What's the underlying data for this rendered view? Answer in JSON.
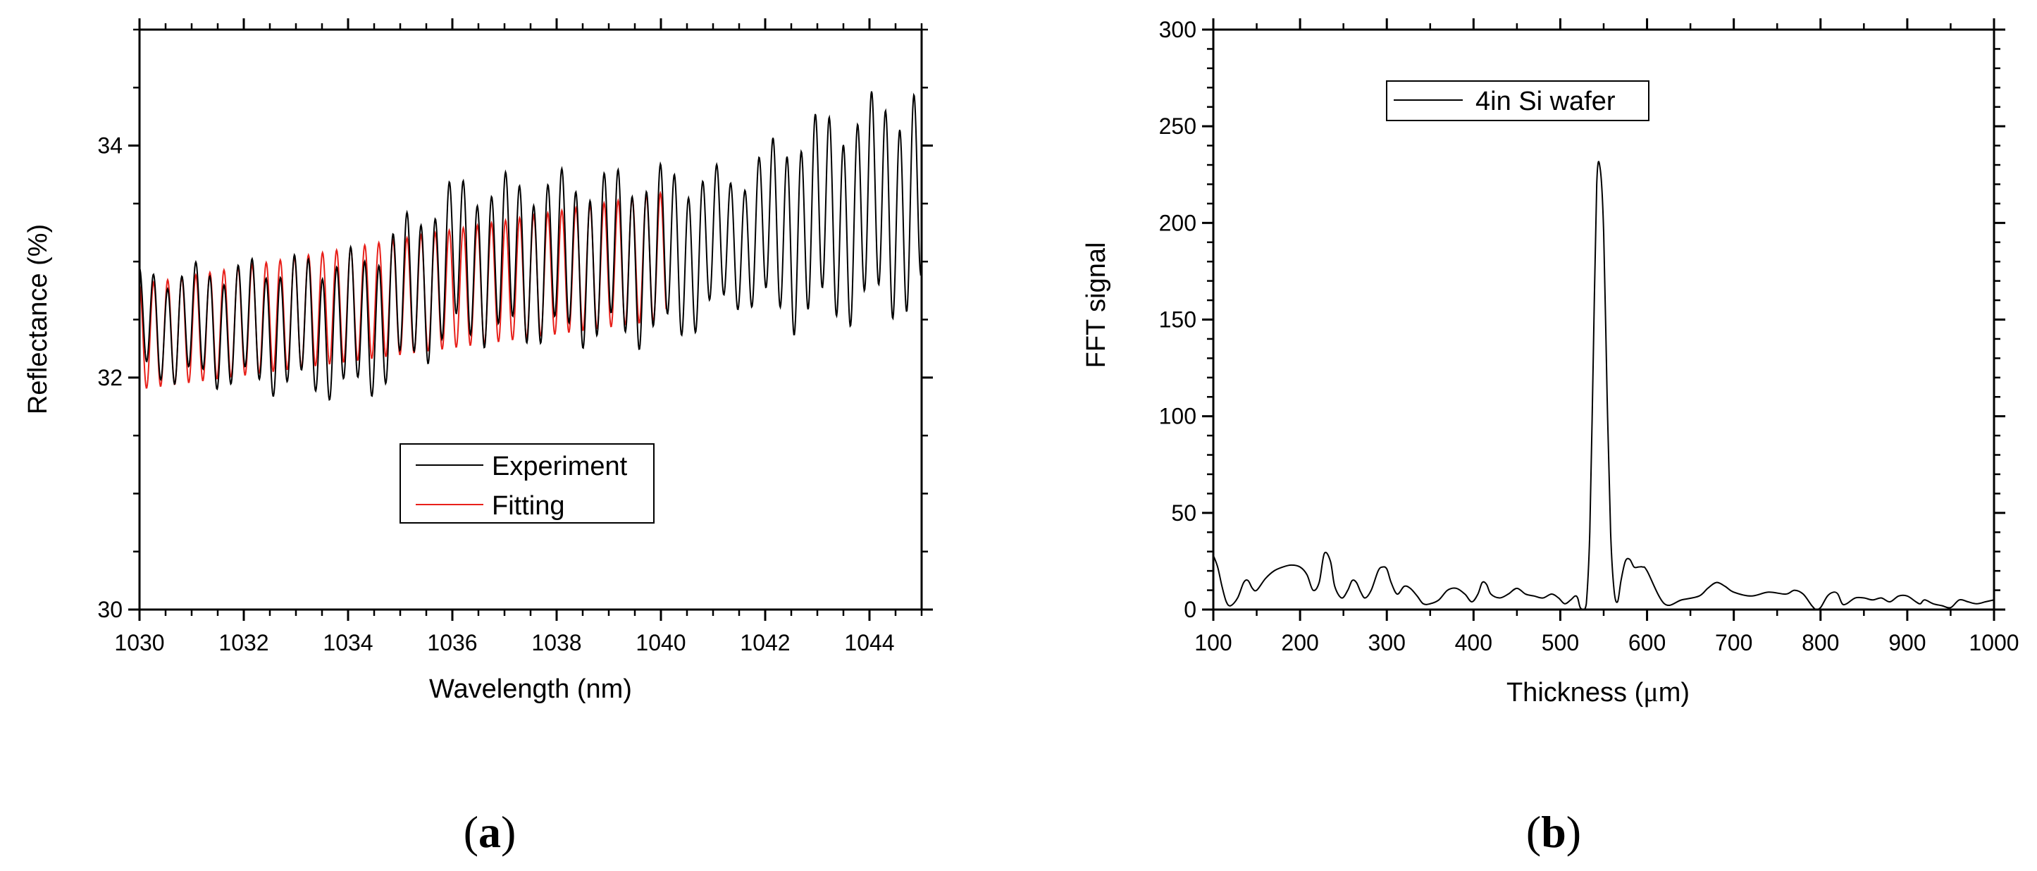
{
  "chart_data": [
    {
      "type": "line",
      "panel_label_parts": [
        "(",
        "a",
        ")"
      ],
      "xlabel": "Wavelength (nm)",
      "ylabel": "Reflectance (%)",
      "xlim": [
        1030,
        1045
      ],
      "ylim": [
        30,
        35
      ],
      "xticks": [
        1030,
        1032,
        1034,
        1036,
        1038,
        1040,
        1042,
        1044
      ],
      "yticks": [
        30,
        32,
        34
      ],
      "legend_position": "center",
      "series": [
        {
          "name": "Experiment",
          "color": "#000000",
          "x_range": [
            1030,
            1045
          ],
          "oscillation_period_nm": 0.27,
          "baseline": [
            [
              1030,
              32.45
            ],
            [
              1034.3,
              32.45
            ],
            [
              1036,
              33.0
            ],
            [
              1040.2,
              33.05
            ],
            [
              1041.5,
              33.2
            ],
            [
              1045,
              33.55
            ]
          ],
          "amplitude": [
            [
              1030,
              0.4
            ],
            [
              1034.3,
              0.55
            ],
            [
              1036,
              0.6
            ],
            [
              1040.2,
              0.65
            ],
            [
              1041.5,
              0.5
            ],
            [
              1042.5,
              0.75
            ],
            [
              1045,
              0.85
            ]
          ]
        },
        {
          "name": "Fitting",
          "color": "#e8201a",
          "x_range": [
            1030,
            1040.1
          ],
          "oscillation_period_nm": 0.27,
          "baseline": [
            [
              1030,
              32.35
            ],
            [
              1040.1,
              33.05
            ]
          ],
          "amplitude": [
            [
              1030,
              0.45
            ],
            [
              1040.1,
              0.55
            ]
          ]
        }
      ]
    },
    {
      "type": "line",
      "panel_label_parts": [
        "(",
        "b",
        ")"
      ],
      "xlabel_parts": [
        "Thickness (",
        "μ",
        "m)"
      ],
      "ylabel": "FFT signal",
      "xlim": [
        100,
        1000
      ],
      "ylim": [
        0,
        300
      ],
      "xticks": [
        100,
        200,
        300,
        400,
        500,
        600,
        700,
        800,
        900,
        1000
      ],
      "yticks": [
        0,
        50,
        100,
        150,
        200,
        250,
        300
      ],
      "legend_position": "top-left",
      "series": [
        {
          "name": "4in Si wafer",
          "color": "#000000",
          "x": [
            100,
            105,
            110,
            115,
            120,
            128,
            135,
            140,
            145,
            150,
            160,
            170,
            180,
            190,
            200,
            208,
            215,
            222,
            228,
            235,
            240,
            248,
            255,
            260,
            265,
            270,
            275,
            282,
            290,
            295,
            300,
            305,
            312,
            320,
            327,
            335,
            342,
            350,
            360,
            370,
            380,
            390,
            398,
            405,
            410,
            415,
            420,
            430,
            440,
            450,
            460,
            470,
            480,
            490,
            498,
            505,
            512,
            517,
            520,
            523,
            527,
            530,
            534,
            538,
            542,
            546,
            550,
            554,
            558,
            562,
            566,
            570,
            575,
            580,
            585,
            590,
            595,
            600,
            620,
            640,
            660,
            670,
            680,
            690,
            700,
            720,
            740,
            760,
            770,
            780,
            790,
            795,
            800,
            808,
            815,
            820,
            825,
            830,
            840,
            850,
            860,
            870,
            880,
            890,
            900,
            910,
            915,
            920,
            930,
            940,
            950,
            960,
            970,
            980,
            990,
            1000
          ],
          "y": [
            28,
            22,
            12,
            4,
            2,
            6,
            14,
            15,
            11,
            10,
            16,
            20,
            22,
            23,
            22,
            18,
            10,
            14,
            29,
            25,
            12,
            6,
            10,
            15,
            14,
            9,
            6,
            10,
            20,
            22,
            21,
            14,
            8,
            12,
            11,
            7,
            3,
            3,
            5,
            10,
            11,
            8,
            4,
            8,
            14,
            13,
            8,
            6,
            8,
            11,
            8,
            7,
            6,
            8,
            6,
            3,
            5,
            7,
            6,
            1,
            0,
            3,
            40,
            130,
            220,
            228,
            195,
            110,
            40,
            10,
            4,
            15,
            25,
            26,
            22,
            22,
            22,
            20,
            3,
            5,
            7,
            11,
            14,
            12,
            9,
            7,
            9,
            8,
            10,
            8,
            2,
            0,
            1,
            7,
            9,
            8,
            3,
            3,
            6,
            6,
            5,
            6,
            4,
            7,
            7,
            4,
            3,
            5,
            3,
            2,
            1,
            5,
            4,
            3,
            4,
            5
          ]
        }
      ]
    }
  ]
}
